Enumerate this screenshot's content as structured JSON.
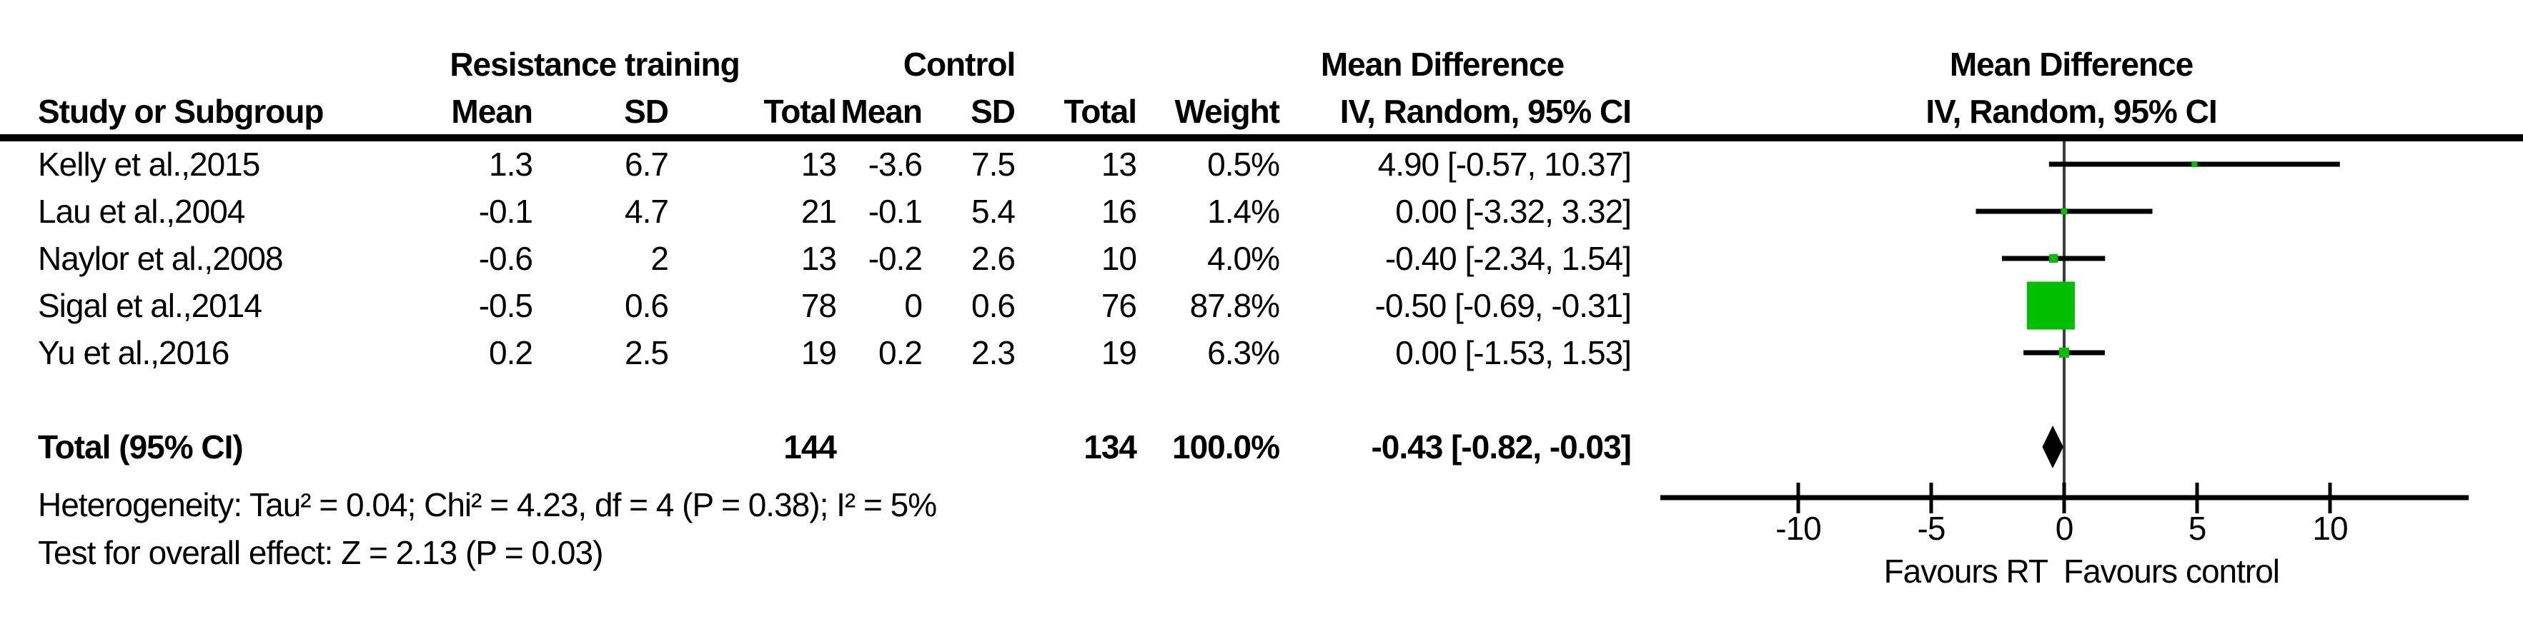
{
  "table": {
    "group_headers": {
      "rt": "Resistance training",
      "control": "Control",
      "md": "Mean Difference"
    },
    "col_headers": {
      "study": "Study or Subgroup",
      "mean": "Mean",
      "sd": "SD",
      "total": "Total",
      "weight": "Weight",
      "ci": "IV, Random, 95% CI"
    },
    "rows": [
      {
        "study": "Kelly et al.,2015",
        "rt_mean": "1.3",
        "rt_sd": "6.7",
        "rt_total": "13",
        "c_mean": "-3.6",
        "c_sd": "7.5",
        "c_total": "13",
        "weight": "0.5%",
        "ci": "4.90 [-0.57, 10.37]"
      },
      {
        "study": "Lau et al.,2004",
        "rt_mean": "-0.1",
        "rt_sd": "4.7",
        "rt_total": "21",
        "c_mean": "-0.1",
        "c_sd": "5.4",
        "c_total": "16",
        "weight": "1.4%",
        "ci": "0.00 [-3.32, 3.32]"
      },
      {
        "study": "Naylor et al.,2008",
        "rt_mean": "-0.6",
        "rt_sd": "2",
        "rt_total": "13",
        "c_mean": "-0.2",
        "c_sd": "2.6",
        "c_total": "10",
        "weight": "4.0%",
        "ci": "-0.40 [-2.34, 1.54]"
      },
      {
        "study": "Sigal et al.,2014",
        "rt_mean": "-0.5",
        "rt_sd": "0.6",
        "rt_total": "78",
        "c_mean": "0",
        "c_sd": "0.6",
        "c_total": "76",
        "weight": "87.8%",
        "ci": "-0.50 [-0.69, -0.31]"
      },
      {
        "study": "Yu et al.,2016",
        "rt_mean": "0.2",
        "rt_sd": "2.5",
        "rt_total": "19",
        "c_mean": "0.2",
        "c_sd": "2.3",
        "c_total": "19",
        "weight": "6.3%",
        "ci": "0.00 [-1.53, 1.53]"
      }
    ],
    "total_row": {
      "label": "Total (95% CI)",
      "rt_total": "144",
      "c_total": "134",
      "weight": "100.0%",
      "ci": "-0.43 [-0.82, -0.03]"
    }
  },
  "plot": {
    "header_line1": "Mean Difference",
    "header_line2": "IV, Random, 95% CI",
    "favours_left": "Favours RT",
    "favours_right": "Favours control"
  },
  "stats": {
    "heterogeneity": "Heterogeneity: Tau² = 0.04; Chi² = 4.23, df = 4 (P = 0.38); I² = 5%",
    "overall_effect": "Test for overall effect: Z = 2.13 (P = 0.03)"
  },
  "colors": {
    "marker_green": "#00BE00",
    "line_black": "#000000",
    "zero_line_gray": "#3c3c3c"
  },
  "chart_data": {
    "type": "forest",
    "effect_measure": "Mean Difference (IV, Random, 95% CI)",
    "x_axis": {
      "min": -10,
      "max": 10,
      "ticks": [
        -10,
        -5,
        0,
        5,
        10
      ],
      "label_left": "Favours RT",
      "label_right": "Favours control"
    },
    "studies": [
      {
        "name": "Kelly et al.,2015",
        "effect": 4.9,
        "ci_low": -0.57,
        "ci_high": 10.37,
        "weight_pct": 0.5,
        "marker_px": 8
      },
      {
        "name": "Lau et al.,2004",
        "effect": 0.0,
        "ci_low": -3.32,
        "ci_high": 3.32,
        "weight_pct": 1.4,
        "marker_px": 9
      },
      {
        "name": "Naylor et al.,2008",
        "effect": -0.4,
        "ci_low": -2.34,
        "ci_high": 1.54,
        "weight_pct": 4.0,
        "marker_px": 12
      },
      {
        "name": "Sigal et al.,2014",
        "effect": -0.5,
        "ci_low": -0.69,
        "ci_high": -0.31,
        "weight_pct": 87.8,
        "marker_px": 67
      },
      {
        "name": "Yu et al.,2016",
        "effect": 0.0,
        "ci_low": -1.53,
        "ci_high": 1.53,
        "weight_pct": 6.3,
        "marker_px": 14
      }
    ],
    "total": {
      "label": "Total (95% CI)",
      "effect": -0.43,
      "ci_low": -0.82,
      "ci_high": -0.03
    },
    "heterogeneity": {
      "tau2": 0.04,
      "chi2": 4.23,
      "df": 4,
      "p": 0.38,
      "i2_pct": 5
    },
    "overall_effect_test": {
      "z": 2.13,
      "p": 0.03
    }
  }
}
